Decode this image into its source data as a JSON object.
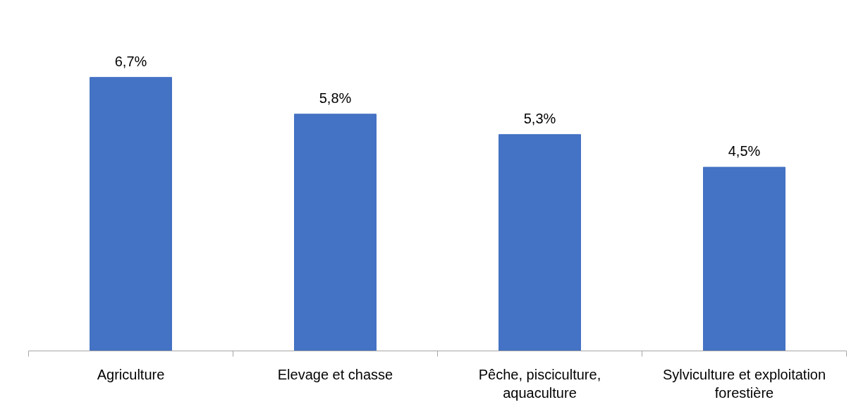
{
  "chart_data": {
    "type": "bar",
    "categories": [
      "Agriculture",
      "Elevage et chasse",
      "Pêche, pisciculture, aquaculture",
      "Sylviculture et exploitation forestière"
    ],
    "values": [
      6.7,
      5.8,
      5.3,
      4.5
    ],
    "value_labels": [
      "6,7%",
      "5,8%",
      "5,3%",
      "4,5%"
    ],
    "color": "#4472c4",
    "grid": false
  }
}
